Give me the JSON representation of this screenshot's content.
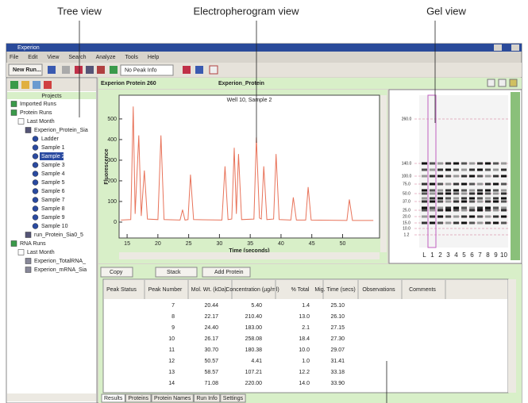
{
  "annotations": {
    "tree_view": "Tree view",
    "electropherogram_view": "Electropherogram view",
    "gel_view": "Gel view"
  },
  "window": {
    "title": "Experion"
  },
  "menu": [
    "File",
    "Edit",
    "View",
    "Search",
    "Analyze",
    "Tools",
    "Help"
  ],
  "toolbar": {
    "new_run": "New Run...",
    "peak_info": "No Peak Info"
  },
  "tree": {
    "header": "Projects",
    "items": [
      "Imported Runs",
      "Protein Runs",
      "Last Month",
      "Experion_Protein_Sia",
      "Ladder",
      "Sample 1",
      "Sample 2",
      "Sample 3",
      "Sample 4",
      "Sample 5",
      "Sample 6",
      "Sample 7",
      "Sample 8",
      "Sample 9",
      "Sample 10",
      "run_Protein_Sia0_5",
      "RNA Runs",
      "Last Month",
      "Experion_TotalRNA_",
      "Experion_mRNA_Sia"
    ]
  },
  "panel": {
    "title": "Experion Protein 260",
    "chip": "Experion_Protein"
  },
  "electropherogram": {
    "type": "line",
    "title": "Well 10, Sample 2",
    "x_label": "Time (seconds)",
    "y_label": "Fluorescence",
    "color": "#e8735a",
    "x": [
      14,
      15.6,
      16.0,
      16.3,
      16.9,
      17.3,
      17.8,
      18.3,
      20.0,
      20.5,
      21.0,
      23.6,
      24.0,
      24.4,
      24.9,
      25.3,
      25.8,
      30.4,
      30.9,
      31.4,
      32.0,
      32.4,
      32.75,
      33.1,
      33.6,
      35.6,
      36.0,
      36.5,
      36.8,
      37.2,
      37.7,
      38.8,
      39.2,
      39.7,
      41.6,
      42.0,
      42.5,
      44.0,
      44.4,
      44.9,
      50.7,
      51.1,
      51.6,
      55
    ],
    "y": [
      10,
      12,
      560,
      40,
      420,
      30,
      250,
      15,
      12,
      420,
      12,
      10,
      60,
      10,
      12,
      230,
      12,
      10,
      270,
      12,
      15,
      360,
      40,
      330,
      12,
      15,
      410,
      20,
      15,
      270,
      12,
      15,
      330,
      12,
      10,
      120,
      10,
      10,
      170,
      10,
      8,
      110,
      8,
      8
    ],
    "xlim": [
      13.7,
      56
    ],
    "ylim": [
      -77,
      615
    ],
    "xticks": [
      15,
      20,
      25,
      30,
      35,
      40,
      45,
      50
    ],
    "yticks": [
      0,
      100,
      200,
      300,
      400,
      500
    ]
  },
  "gel": {
    "markers": [
      "260.0",
      "140.0",
      "100.0",
      "75.0",
      "50.0",
      "37.0",
      "25.0",
      "20.0",
      "15.0",
      "10.0",
      "1.2"
    ],
    "lanes": [
      "L",
      "1",
      "2",
      "3",
      "4",
      "5",
      "6",
      "7",
      "8",
      "9",
      "10"
    ]
  },
  "results": {
    "toolbar": {
      "copy": "Copy",
      "stack": "Stack",
      "add": "Add Protein"
    },
    "columns": [
      "Peak Status",
      "Peak Number",
      "Mol. Wt. (kDa)",
      "Concentration (µg/ml)",
      "% Total",
      "Mig. Time (secs)",
      "Observations",
      "Comments"
    ],
    "rows": [
      {
        "number": "7",
        "mw": "20.44",
        "conc": "5.40",
        "pct": "1.4",
        "mig": "25.10"
      },
      {
        "number": "8",
        "mw": "22.17",
        "conc": "210.40",
        "pct": "13.0",
        "mig": "26.10"
      },
      {
        "number": "9",
        "mw": "24.40",
        "conc": "183.00",
        "pct": "2.1",
        "mig": "27.15"
      },
      {
        "number": "10",
        "mw": "26.17",
        "conc": "258.08",
        "pct": "18.4",
        "mig": "27.30"
      },
      {
        "number": "11",
        "mw": "30.70",
        "conc": "180.38",
        "pct": "10.0",
        "mig": "29.07"
      },
      {
        "number": "12",
        "mw": "50.57",
        "conc": "4.41",
        "pct": "1.0",
        "mig": "31.41"
      },
      {
        "number": "13",
        "mw": "58.57",
        "conc": "107.21",
        "pct": "12.2",
        "mig": "33.18"
      },
      {
        "number": "14",
        "mw": "71.08",
        "conc": "220.00",
        "pct": "14.0",
        "mig": "33.90"
      }
    ]
  },
  "tabs": [
    "Results",
    "Proteins",
    "Protein Names",
    "Run Info",
    "Settings"
  ]
}
